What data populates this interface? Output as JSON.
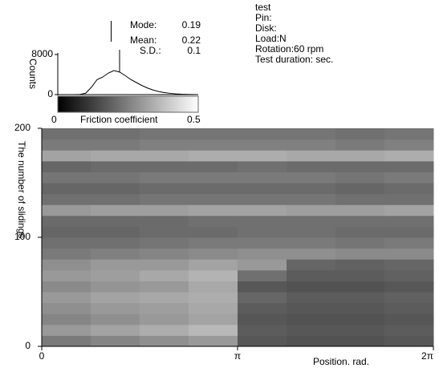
{
  "chart_data": [
    {
      "type": "line",
      "y_label": "Counts",
      "color": "#000000",
      "x": [
        0,
        0.02,
        0.04,
        0.06,
        0.08,
        0.1,
        0.12,
        0.14,
        0.16,
        0.18,
        0.2,
        0.22,
        0.24,
        0.26,
        0.28,
        0.3,
        0.32,
        0.34,
        0.36,
        0.38,
        0.4,
        0.42,
        0.44,
        0.46,
        0.48,
        0.5
      ],
      "values": [
        0,
        0,
        0,
        0,
        50,
        300,
        1500,
        3000,
        3500,
        4300,
        4800,
        4500,
        3800,
        3000,
        2400,
        1800,
        1300,
        900,
        600,
        400,
        250,
        150,
        80,
        40,
        20,
        0
      ],
      "xlim": [
        0,
        0.5
      ],
      "ylim": [
        0,
        8000
      ],
      "yticks": [
        0,
        8000
      ],
      "stats": [
        {
          "label": "Mode:",
          "value": 0.19
        },
        {
          "label": "Mean:",
          "value": 0.22
        },
        {
          "label": "S.D.:",
          "value": 0.1
        }
      ],
      "annotations": [
        "test",
        "Pin:",
        "Disk:",
        "Load:N",
        "Rotation:60 rpm",
        "Test duration: sec."
      ]
    },
    {
      "type": "heatmap",
      "x_label": "Position. rad.",
      "y_label": "The number of slidings",
      "xlim": [
        0,
        6.28319
      ],
      "xticks": [
        0,
        {
          "value": 3.14159,
          "label": "π"
        },
        {
          "value": 6.28319,
          "label": "2π"
        }
      ],
      "ylim": [
        0,
        200
      ],
      "yticks": [
        0,
        100,
        200
      ],
      "zlim": [
        0,
        0.5
      ],
      "zticks": [
        0,
        0.5
      ],
      "colorbar_label": "Friction coefficient",
      "z": [
        [
          0.24,
          0.26,
          0.28,
          0.3,
          0.17,
          0.16,
          0.16,
          0.17
        ],
        [
          0.3,
          0.32,
          0.34,
          0.36,
          0.18,
          0.17,
          0.17,
          0.18
        ],
        [
          0.26,
          0.28,
          0.3,
          0.32,
          0.17,
          0.16,
          0.16,
          0.17
        ],
        [
          0.28,
          0.3,
          0.31,
          0.33,
          0.18,
          0.17,
          0.17,
          0.18
        ],
        [
          0.3,
          0.32,
          0.33,
          0.34,
          0.2,
          0.18,
          0.18,
          0.19
        ],
        [
          0.27,
          0.29,
          0.3,
          0.33,
          0.17,
          0.16,
          0.16,
          0.17
        ],
        [
          0.3,
          0.31,
          0.33,
          0.35,
          0.22,
          0.18,
          0.18,
          0.19
        ],
        [
          0.28,
          0.3,
          0.3,
          0.32,
          0.3,
          0.2,
          0.19,
          0.2
        ],
        [
          0.24,
          0.25,
          0.26,
          0.27,
          0.28,
          0.28,
          0.27,
          0.27
        ],
        [
          0.22,
          0.22,
          0.23,
          0.24,
          0.24,
          0.24,
          0.23,
          0.24
        ],
        [
          0.2,
          0.2,
          0.21,
          0.21,
          0.22,
          0.22,
          0.21,
          0.21
        ],
        [
          0.21,
          0.21,
          0.21,
          0.22,
          0.22,
          0.22,
          0.22,
          0.22
        ],
        [
          0.3,
          0.31,
          0.31,
          0.32,
          0.32,
          0.31,
          0.31,
          0.32
        ],
        [
          0.22,
          0.22,
          0.23,
          0.23,
          0.23,
          0.23,
          0.22,
          0.22
        ],
        [
          0.2,
          0.2,
          0.21,
          0.21,
          0.21,
          0.21,
          0.2,
          0.21
        ],
        [
          0.23,
          0.23,
          0.24,
          0.24,
          0.24,
          0.24,
          0.23,
          0.24
        ],
        [
          0.2,
          0.21,
          0.21,
          0.21,
          0.22,
          0.21,
          0.21,
          0.21
        ],
        [
          0.32,
          0.33,
          0.33,
          0.34,
          0.34,
          0.33,
          0.33,
          0.34
        ],
        [
          0.24,
          0.24,
          0.25,
          0.25,
          0.25,
          0.25,
          0.24,
          0.25
        ],
        [
          0.22,
          0.22,
          0.23,
          0.23,
          0.23,
          0.23,
          0.22,
          0.23
        ]
      ]
    }
  ]
}
